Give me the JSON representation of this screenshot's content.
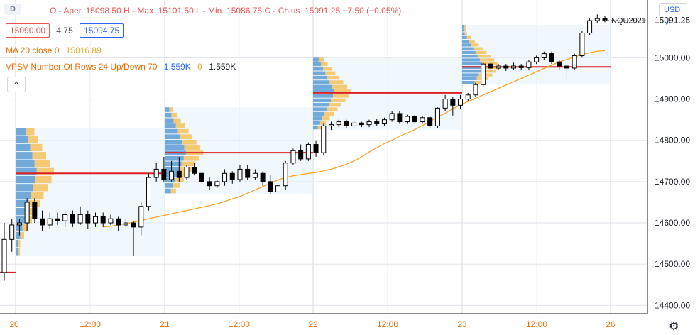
{
  "header": {
    "interval_tag": "D",
    "ohlc_text": "O - Aper. 15098.50  H - Max. 15101.50  L - Min. 15086.75  C - Chius. 15091.25  −7.50 (−0.05%)",
    "bid": "15090.00",
    "spread": "4.75",
    "ask": "15094.75",
    "ma_label": "MA 20 close 0",
    "ma_value": "15016.89",
    "vpsv_label": "VPSV Number Of Rows 24 Up/Down 70",
    "vpsv_v1": "1.559K",
    "vpsv_v2": "0",
    "vpsv_v3": "1.559K",
    "collapse_label": "^",
    "currency": "USD"
  },
  "colors": {
    "up": "#ffffff",
    "down": "#000000",
    "ma": "#f5a623",
    "poc": "#e02020",
    "vol_up": "#5b9bd5",
    "vol_down": "#f6c25f",
    "bid_color": "#ef5350",
    "ask_color": "#2962ff",
    "ma_text": "#f5a623",
    "vpsv_text": "#ef6c00"
  },
  "chart_data": {
    "type": "candlestick",
    "symbol": "NQU2021",
    "last_price": "15091.25",
    "ylim": [
      14380,
      15140
    ],
    "y_ticks": [
      "15000.00",
      "14900.00",
      "14800.00",
      "14700.00",
      "14600.00",
      "14500.00",
      "14400.00"
    ],
    "x_ticks": [
      "20",
      "12:00",
      "21",
      "12:00",
      "22",
      "12:00",
      "23",
      "12:00",
      "26"
    ],
    "sessions": [
      {
        "label": "20",
        "poc": 14720,
        "va_low": 14520,
        "va_high": 14830
      },
      {
        "label": "21",
        "poc": 14770,
        "va_low": 14670,
        "va_high": 14880
      },
      {
        "label": "22",
        "poc": 14915,
        "va_low": 14825,
        "va_high": 15000
      },
      {
        "label": "23",
        "poc": 14978,
        "va_low": 14935,
        "va_high": 15080
      }
    ],
    "candles": [
      [
        14480,
        14560,
        14460,
        14600
      ],
      [
        14560,
        14595,
        14530,
        14610
      ],
      [
        14595,
        14600,
        14570,
        14610
      ],
      [
        14600,
        14650,
        14580,
        14660
      ],
      [
        14650,
        14610,
        14600,
        14660
      ],
      [
        14610,
        14595,
        14580,
        14630
      ],
      [
        14595,
        14610,
        14585,
        14625
      ],
      [
        14610,
        14605,
        14595,
        14625
      ],
      [
        14605,
        14620,
        14590,
        14630
      ],
      [
        14620,
        14600,
        14590,
        14630
      ],
      [
        14600,
        14620,
        14595,
        14640
      ],
      [
        14620,
        14600,
        14585,
        14630
      ],
      [
        14600,
        14615,
        14590,
        14625
      ],
      [
        14615,
        14600,
        14590,
        14625
      ],
      [
        14600,
        14610,
        14595,
        14620
      ],
      [
        14610,
        14595,
        14580,
        14615
      ],
      [
        14595,
        14600,
        14590,
        14610
      ],
      [
        14600,
        14590,
        14520,
        14605
      ],
      [
        14590,
        14640,
        14570,
        14650
      ],
      [
        14640,
        14710,
        14630,
        14720
      ],
      [
        14710,
        14730,
        14700,
        14745
      ],
      [
        14730,
        14705,
        14700,
        14760
      ],
      [
        14705,
        14725,
        14700,
        14750
      ],
      [
        14725,
        14710,
        14700,
        14760
      ],
      [
        14710,
        14735,
        14705,
        14740
      ],
      [
        14735,
        14720,
        14715,
        14745
      ],
      [
        14720,
        14700,
        14695,
        14725
      ],
      [
        14700,
        14690,
        14680,
        14710
      ],
      [
        14690,
        14700,
        14685,
        14705
      ],
      [
        14700,
        14720,
        14690,
        14730
      ],
      [
        14720,
        14705,
        14695,
        14725
      ],
      [
        14705,
        14730,
        14700,
        14740
      ],
      [
        14730,
        14710,
        14705,
        14740
      ],
      [
        14710,
        14720,
        14705,
        14730
      ],
      [
        14720,
        14700,
        14690,
        14725
      ],
      [
        14700,
        14675,
        14670,
        14715
      ],
      [
        14675,
        14690,
        14665,
        14700
      ],
      [
        14690,
        14745,
        14680,
        14750
      ],
      [
        14745,
        14775,
        14740,
        14780
      ],
      [
        14775,
        14755,
        14750,
        14790
      ],
      [
        14755,
        14790,
        14750,
        14795
      ],
      [
        14790,
        14770,
        14760,
        14800
      ],
      [
        14770,
        14835,
        14765,
        14840
      ],
      [
        14835,
        14838,
        14825,
        14845
      ],
      [
        14838,
        14845,
        14832,
        14850
      ],
      [
        14845,
        14835,
        14830,
        14850
      ],
      [
        14835,
        14842,
        14830,
        14848
      ],
      [
        14842,
        14838,
        14832,
        14845
      ],
      [
        14838,
        14845,
        14832,
        14850
      ],
      [
        14845,
        14840,
        14835,
        14852
      ],
      [
        14840,
        14850,
        14835,
        14855
      ],
      [
        14850,
        14865,
        14845,
        14870
      ],
      [
        14865,
        14845,
        14840,
        14870
      ],
      [
        14845,
        14858,
        14840,
        14862
      ],
      [
        14858,
        14845,
        14840,
        14862
      ],
      [
        14845,
        14855,
        14840,
        14860
      ],
      [
        14855,
        14835,
        14830,
        14860
      ],
      [
        14835,
        14878,
        14830,
        14880
      ],
      [
        14878,
        14900,
        14870,
        14910
      ],
      [
        14900,
        14885,
        14860,
        14905
      ],
      [
        14885,
        14900,
        14875,
        14910
      ],
      [
        14900,
        14910,
        14895,
        14915
      ],
      [
        14910,
        14935,
        14905,
        14940
      ],
      [
        14935,
        14985,
        14930,
        14990
      ],
      [
        14985,
        14975,
        14965,
        14990
      ],
      [
        14975,
        14980,
        14970,
        14985
      ],
      [
        14980,
        14975,
        14968,
        14985
      ],
      [
        14975,
        14980,
        14970,
        14988
      ],
      [
        14980,
        14976,
        14970,
        14985
      ],
      [
        14976,
        14990,
        14970,
        14995
      ],
      [
        14990,
        15000,
        14985,
        15005
      ],
      [
        15000,
        15010,
        14995,
        15015
      ],
      [
        15010,
        14990,
        14985,
        15015
      ],
      [
        14990,
        14980,
        14970,
        14995
      ],
      [
        14980,
        14975,
        14950,
        14985
      ],
      [
        14975,
        15005,
        14970,
        15010
      ],
      [
        15005,
        15060,
        15000,
        15065
      ],
      [
        15060,
        15090,
        15055,
        15095
      ],
      [
        15090,
        15095,
        15085,
        15105
      ],
      [
        15095,
        15091,
        15086,
        15101
      ]
    ],
    "ma20": [
      14590,
      14592,
      14595,
      14598,
      14602,
      14606,
      14610,
      14614,
      14618,
      14622,
      14626,
      14630,
      14634,
      14638,
      14642,
      14646,
      14652,
      14658,
      14664,
      14672,
      14680,
      14688,
      14696,
      14704,
      14710,
      14714,
      14717,
      14720,
      14722,
      14726,
      14730,
      14736,
      14742,
      14750,
      14760,
      14772,
      14782,
      14792,
      14800,
      14810,
      14818,
      14826,
      14836,
      14846,
      14856,
      14866,
      14876,
      14886,
      14894,
      14902,
      14910,
      14918,
      14926,
      14934,
      14942,
      14950,
      14958,
      14966,
      14974,
      14982,
      14990,
      14996,
      15002,
      15008,
      15012,
      15016,
      15017
    ]
  }
}
